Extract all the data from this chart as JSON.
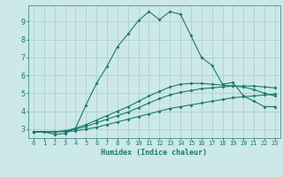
{
  "xlabel": "Humidex (Indice chaleur)",
  "bg_color": "#cce8e8",
  "grid_color": "#b0d0d0",
  "line_color": "#1a7a6e",
  "xlim": [
    -0.5,
    23.5
  ],
  "ylim": [
    2.5,
    9.9
  ],
  "xticks": [
    0,
    1,
    2,
    3,
    4,
    5,
    6,
    7,
    8,
    9,
    10,
    11,
    12,
    13,
    14,
    15,
    16,
    17,
    18,
    19,
    20,
    21,
    22,
    23
  ],
  "yticks": [
    3,
    4,
    5,
    6,
    7,
    8,
    9
  ],
  "line1_x": [
    0,
    1,
    2,
    3,
    4,
    5,
    6,
    7,
    8,
    9,
    10,
    11,
    12,
    13,
    14,
    15,
    16,
    17,
    18,
    19,
    20,
    21,
    22,
    23
  ],
  "line1_y": [
    2.85,
    2.85,
    2.7,
    2.75,
    3.05,
    4.35,
    5.55,
    6.5,
    7.6,
    8.3,
    9.05,
    9.55,
    9.1,
    9.55,
    9.4,
    8.2,
    7.0,
    6.55,
    5.5,
    5.6,
    4.85,
    4.55,
    4.25,
    4.25
  ],
  "line2_x": [
    0,
    2,
    3,
    4,
    5,
    6,
    7,
    8,
    9,
    10,
    11,
    12,
    13,
    14,
    15,
    16,
    17,
    18,
    19,
    20,
    21,
    22,
    23
  ],
  "line2_y": [
    2.85,
    2.85,
    2.85,
    2.9,
    3.0,
    3.1,
    3.25,
    3.4,
    3.55,
    3.7,
    3.85,
    4.0,
    4.15,
    4.25,
    4.35,
    4.45,
    4.55,
    4.65,
    4.75,
    4.8,
    4.85,
    4.9,
    4.95
  ],
  "line3_x": [
    0,
    2,
    3,
    4,
    5,
    6,
    7,
    8,
    9,
    10,
    11,
    12,
    13,
    14,
    15,
    16,
    17,
    18,
    19,
    20,
    21,
    22,
    23
  ],
  "line3_y": [
    2.85,
    2.85,
    2.9,
    3.0,
    3.15,
    3.35,
    3.55,
    3.75,
    3.95,
    4.2,
    4.45,
    4.7,
    4.9,
    5.05,
    5.15,
    5.25,
    5.3,
    5.35,
    5.4,
    5.4,
    5.4,
    5.35,
    5.3
  ],
  "line4_x": [
    0,
    2,
    3,
    4,
    5,
    6,
    7,
    8,
    9,
    10,
    11,
    12,
    13,
    14,
    15,
    16,
    17,
    18,
    19,
    20,
    21,
    22,
    23
  ],
  "line4_y": [
    2.85,
    2.85,
    2.9,
    3.05,
    3.25,
    3.5,
    3.75,
    4.0,
    4.25,
    4.55,
    4.85,
    5.1,
    5.35,
    5.5,
    5.55,
    5.55,
    5.5,
    5.45,
    5.4,
    5.35,
    5.2,
    5.0,
    4.85
  ]
}
